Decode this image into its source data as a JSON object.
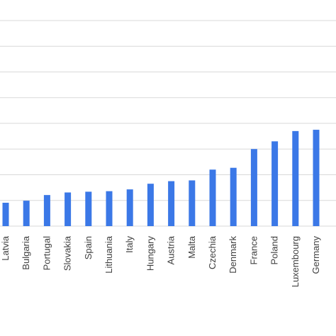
{
  "chart_data": {
    "type": "bar",
    "categories": [
      "Latvia",
      "Bulgaria",
      "Portugal",
      "Slovakia",
      "Spain",
      "Lithuania",
      "Italy",
      "Hungary",
      "Austria",
      "Malta",
      "Czechia",
      "Denmark",
      "France",
      "Poland",
      "Luxembourg",
      "Germany"
    ],
    "values": [
      0.91,
      0.99,
      1.21,
      1.31,
      1.34,
      1.36,
      1.43,
      1.65,
      1.75,
      1.78,
      2.2,
      2.27,
      3.0,
      3.3,
      3.7,
      3.75
    ],
    "title": "",
    "xlabel": "",
    "ylabel": "",
    "ylim": [
      0,
      8
    ],
    "grid": true,
    "colors": {
      "bar": "#3b78e7",
      "grid": "#d9d9d9",
      "tick_text": "#404040"
    }
  }
}
